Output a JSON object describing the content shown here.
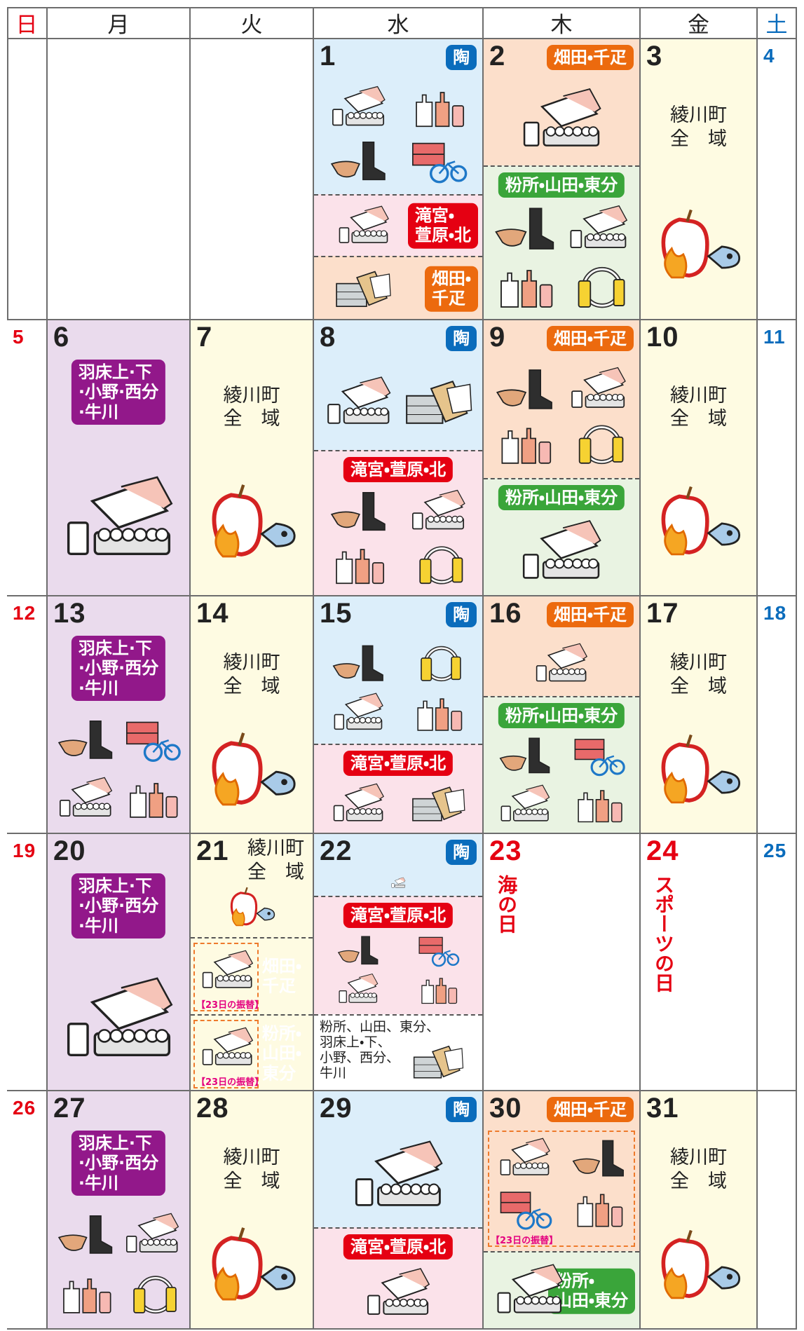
{
  "header": {
    "days": [
      "日",
      "月",
      "火",
      "水",
      "木",
      "金",
      "土"
    ]
  },
  "weeks": [
    {
      "days": [
        null,
        null,
        null,
        {
          "date": "1",
          "sections": [
            {
              "label": "陶"
            },
            {
              "label": "滝宮・\n萱原・北"
            },
            {
              "label": "畑田・\n千疋"
            }
          ]
        },
        {
          "date": "2",
          "sections": [
            {
              "label": "畑田・千疋"
            },
            {
              "label": "粉所・山田・東分"
            }
          ]
        },
        {
          "date": "3",
          "text": "綾川町\n全　域"
        },
        {
          "date": "4"
        }
      ]
    },
    {
      "days": [
        {
          "date": "5"
        },
        {
          "date": "6",
          "sections": [
            {
              "label": "羽床上·下\n·小野·西分\n·牛川"
            }
          ]
        },
        {
          "date": "7",
          "text": "綾川町\n全　域"
        },
        {
          "date": "8",
          "sections": [
            {
              "label": "陶"
            },
            {
              "label": "滝宮・萱原・北"
            }
          ]
        },
        {
          "date": "9",
          "sections": [
            {
              "label": "畑田・千疋"
            },
            {
              "label": "粉所・山田・東分"
            }
          ]
        },
        {
          "date": "10",
          "text": "綾川町\n全　域"
        },
        {
          "date": "11"
        }
      ]
    },
    {
      "days": [
        {
          "date": "12"
        },
        {
          "date": "13",
          "sections": [
            {
              "label": "羽床上·下\n·小野·西分\n·牛川"
            }
          ]
        },
        {
          "date": "14",
          "text": "綾川町\n全　域"
        },
        {
          "date": "15",
          "sections": [
            {
              "label": "陶"
            },
            {
              "label": "滝宮・萱原・北"
            }
          ]
        },
        {
          "date": "16",
          "sections": [
            {
              "label": "畑田・千疋"
            },
            {
              "label": "粉所・山田・東分"
            }
          ]
        },
        {
          "date": "17",
          "text": "綾川町\n全　域"
        },
        {
          "date": "18"
        }
      ]
    },
    {
      "days": [
        {
          "date": "19"
        },
        {
          "date": "20",
          "sections": [
            {
              "label": "羽床上·下\n·小野·西分\n·牛川"
            }
          ]
        },
        {
          "date": "21",
          "text": "綾川町\n全　域",
          "sections": [
            {
              "label": "畑田・\n千疋",
              "note": "【23日の振替】"
            },
            {
              "label": "粉所・\n山田・\n東分",
              "note": "【23日の振替】"
            }
          ]
        },
        {
          "date": "22",
          "sections": [
            {
              "label": "陶"
            },
            {
              "label": "滝宮・萱原・北"
            }
          ],
          "text": "粉所、山田、東分、\n羽床上・下、\n小野、西分、\n牛川"
        },
        {
          "date": "23",
          "holiday": "海の日"
        },
        {
          "date": "24",
          "holiday": "スポーツの日"
        },
        {
          "date": "25"
        }
      ]
    },
    {
      "days": [
        {
          "date": "26"
        },
        {
          "date": "27",
          "sections": [
            {
              "label": "羽床上·下\n·小野·西分\n·牛川"
            }
          ]
        },
        {
          "date": "28",
          "text": "綾川町\n全　域"
        },
        {
          "date": "29",
          "sections": [
            {
              "label": "陶"
            },
            {
              "label": "滝宮・萱原・北"
            }
          ]
        },
        {
          "date": "30",
          "sections": [
            {
              "label": "畑田・千疋",
              "note": "【23日の振替】"
            },
            {
              "label": "粉所・\n山田・東分"
            }
          ]
        },
        {
          "date": "31",
          "text": "綾川町\n全　域"
        },
        null
      ]
    }
  ]
}
